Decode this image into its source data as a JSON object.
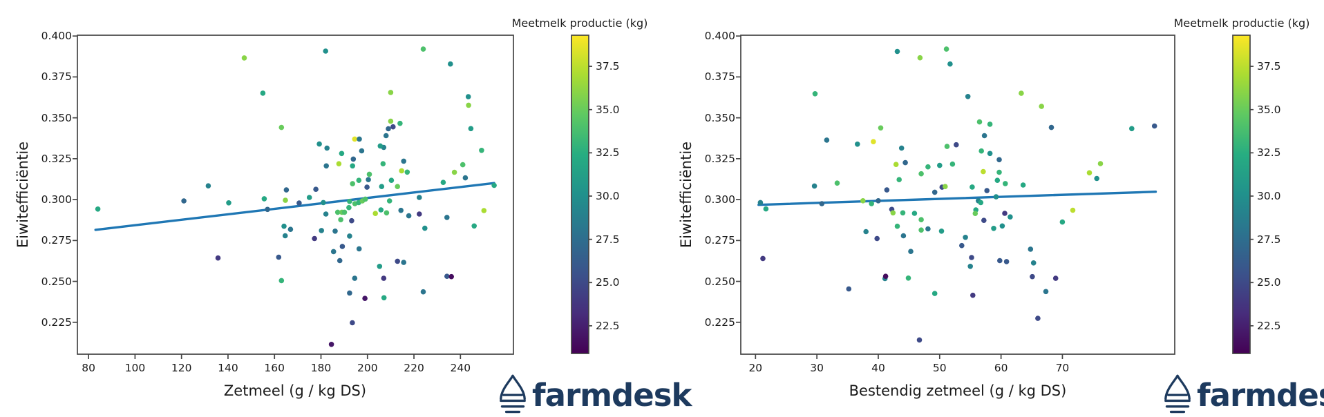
{
  "page": {
    "background": "#ffffff"
  },
  "branding": {
    "logo_text": "farmdesk",
    "logo_color": "#1d3a5e"
  },
  "colorbar": {
    "title": "Meetmelk productie (kg)",
    "tick_values": [
      37.5,
      35.0,
      32.5,
      30.0,
      27.5,
      25.0,
      22.5
    ],
    "vmin": 20.9,
    "vmax": 39.3,
    "colormap": "viridis"
  },
  "chart_data": [
    {
      "type": "scatter",
      "title": "",
      "xlabel": "Zetmeel (g / kg DS)",
      "ylabel": "Eiwitefficiëntie",
      "color_label": "Meetmelk productie (kg)",
      "xlim": [
        75.2,
        262.8
      ],
      "ylim": [
        0.2055,
        0.4005
      ],
      "xticks": [
        80,
        100,
        120,
        140,
        160,
        180,
        200,
        220,
        240
      ],
      "yticks": [
        0.4,
        0.375,
        0.35,
        0.325,
        0.3,
        0.275,
        0.25,
        0.225
      ],
      "grid": false,
      "legend": "none",
      "trendline": {
        "color": "#1f77b4",
        "x": [
          83,
          254.5
        ],
        "y": [
          0.2815,
          0.3101
        ]
      },
      "points": [
        [
          147,
          0.3866,
          36
        ],
        [
          131.5,
          0.3084,
          29
        ],
        [
          182,
          0.3908,
          30
        ],
        [
          224,
          0.392,
          34
        ],
        [
          155,
          0.3651,
          32
        ],
        [
          210,
          0.3655,
          36
        ],
        [
          163,
          0.3441,
          35
        ],
        [
          210,
          0.3479,
          36
        ],
        [
          214,
          0.3466,
          33
        ],
        [
          211,
          0.3445,
          25
        ],
        [
          209,
          0.3433,
          27
        ],
        [
          208,
          0.3391,
          28
        ],
        [
          207,
          0.3319,
          29
        ],
        [
          205.5,
          0.3328,
          31
        ],
        [
          194.5,
          0.337,
          38.5
        ],
        [
          196.5,
          0.337,
          28
        ],
        [
          179.3,
          0.334,
          30
        ],
        [
          182.6,
          0.3315,
          29
        ],
        [
          188.9,
          0.3282,
          32
        ],
        [
          197.5,
          0.3298,
          28
        ],
        [
          193.9,
          0.3248,
          27
        ],
        [
          182.3,
          0.3206,
          28
        ],
        [
          187.7,
          0.3219,
          37
        ],
        [
          193.6,
          0.3206,
          32
        ],
        [
          206.7,
          0.3219,
          33
        ],
        [
          215.6,
          0.3235,
          28
        ],
        [
          214.7,
          0.3176,
          37
        ],
        [
          217.1,
          0.3168,
          33
        ],
        [
          200.8,
          0.3155,
          34
        ],
        [
          200.4,
          0.3122,
          28
        ],
        [
          196.3,
          0.3118,
          33
        ],
        [
          193.6,
          0.3097,
          34
        ],
        [
          210.3,
          0.3118,
          32
        ],
        [
          206.1,
          0.308,
          31
        ],
        [
          212.9,
          0.308,
          35
        ],
        [
          199.8,
          0.3076,
          26
        ],
        [
          165.1,
          0.3059,
          27
        ],
        [
          177.8,
          0.3063,
          26
        ],
        [
          235.7,
          0.3829,
          30
        ],
        [
          243.4,
          0.3629,
          30
        ],
        [
          243.5,
          0.3577,
          36
        ],
        [
          244.5,
          0.3434,
          31
        ],
        [
          249.1,
          0.3301,
          33
        ],
        [
          241,
          0.3213,
          34
        ],
        [
          237.4,
          0.3167,
          36
        ],
        [
          242.1,
          0.3133,
          28
        ],
        [
          232.6,
          0.3105,
          32
        ],
        [
          254.5,
          0.3087,
          32
        ],
        [
          222.3,
          0.3013,
          29
        ],
        [
          222.3,
          0.2912,
          24
        ],
        [
          234.2,
          0.2891,
          28
        ],
        [
          250.1,
          0.2933,
          37
        ],
        [
          84,
          0.2942,
          32
        ],
        [
          121,
          0.2992,
          27
        ],
        [
          140.3,
          0.298,
          31
        ],
        [
          135.7,
          0.2643,
          24
        ],
        [
          155.6,
          0.3005,
          32
        ],
        [
          164.7,
          0.2996,
          36
        ],
        [
          175,
          0.3013,
          31
        ],
        [
          170.6,
          0.2979,
          26
        ],
        [
          157,
          0.294,
          27
        ],
        [
          181,
          0.2982,
          30
        ],
        [
          192.3,
          0.2989,
          33
        ],
        [
          194.6,
          0.2975,
          34
        ],
        [
          196.2,
          0.2982,
          33
        ],
        [
          197.8,
          0.2992,
          35
        ],
        [
          199.1,
          0.3003,
          34
        ],
        [
          182.1,
          0.2912,
          29
        ],
        [
          187.2,
          0.2923,
          34
        ],
        [
          189,
          0.2923,
          35
        ],
        [
          190.1,
          0.2923,
          34
        ],
        [
          192,
          0.2951,
          33
        ],
        [
          188.5,
          0.2877,
          34
        ],
        [
          193.2,
          0.2871,
          25
        ],
        [
          203.4,
          0.2915,
          37
        ],
        [
          205.8,
          0.2937,
          32
        ],
        [
          208.2,
          0.2919,
          34
        ],
        [
          209.5,
          0.2992,
          33
        ],
        [
          214.4,
          0.2934,
          28
        ],
        [
          217.8,
          0.2901,
          28
        ],
        [
          224.7,
          0.2825,
          30
        ],
        [
          164.1,
          0.2837,
          30
        ],
        [
          166.9,
          0.2818,
          28
        ],
        [
          164.6,
          0.2779,
          29
        ],
        [
          180.2,
          0.2811,
          29
        ],
        [
          186.1,
          0.2807,
          28
        ],
        [
          177.2,
          0.2762,
          24
        ],
        [
          192.3,
          0.2777,
          29
        ],
        [
          189.2,
          0.2714,
          26
        ],
        [
          185.4,
          0.2682,
          28
        ],
        [
          196.4,
          0.2699,
          28
        ],
        [
          161.8,
          0.2648,
          26
        ],
        [
          188.1,
          0.2627,
          27
        ],
        [
          212.9,
          0.2623,
          25
        ],
        [
          215.6,
          0.2616,
          28
        ],
        [
          205.2,
          0.2592,
          31
        ],
        [
          163,
          0.2505,
          33
        ],
        [
          194.5,
          0.2519,
          28
        ],
        [
          207,
          0.2519,
          24
        ],
        [
          192.3,
          0.2429,
          27
        ],
        [
          198.9,
          0.2396,
          22
        ],
        [
          207.1,
          0.24,
          32
        ],
        [
          224,
          0.2436,
          28
        ],
        [
          193.5,
          0.2247,
          25
        ],
        [
          184.5,
          0.2115,
          22
        ],
        [
          245.9,
          0.2839,
          32
        ],
        [
          234.2,
          0.2531,
          26
        ],
        [
          236.1,
          0.2529,
          21.5
        ]
      ]
    },
    {
      "type": "scatter",
      "title": "",
      "xlabel": "Bestendig zetmeel (g / kg DS)",
      "ylabel": "Eiwitefficiëntie",
      "color_label": "Meetmelk productie (kg)",
      "xlim": [
        17.6,
        88.3
      ],
      "ylim": [
        0.2055,
        0.4005
      ],
      "xticks": [
        20,
        30,
        40,
        50,
        60,
        70
      ],
      "yticks": [
        0.4,
        0.375,
        0.35,
        0.325,
        0.3,
        0.275,
        0.25,
        0.225
      ],
      "grid": false,
      "legend": "none",
      "trendline": {
        "color": "#1f77b4",
        "x": [
          20.5,
          85.2
        ],
        "y": [
          0.2968,
          0.3048
        ]
      },
      "points": [
        [
          43.1,
          0.3906,
          30
        ],
        [
          51.1,
          0.392,
          34
        ],
        [
          46.8,
          0.3867,
          36
        ],
        [
          51.7,
          0.3829,
          30
        ],
        [
          29.7,
          0.3647,
          33
        ],
        [
          40.4,
          0.3438,
          35
        ],
        [
          31.6,
          0.3364,
          28
        ],
        [
          39.2,
          0.3354,
          38.5
        ],
        [
          36.6,
          0.3339,
          30
        ],
        [
          43.8,
          0.3315,
          29
        ],
        [
          42.9,
          0.3215,
          37
        ],
        [
          44.4,
          0.3226,
          27
        ],
        [
          48.1,
          0.32,
          33
        ],
        [
          50,
          0.3209,
          31
        ],
        [
          52.1,
          0.3217,
          33
        ],
        [
          47,
          0.3158,
          34
        ],
        [
          43.4,
          0.3122,
          33
        ],
        [
          29.6,
          0.3083,
          29
        ],
        [
          33.3,
          0.3101,
          34
        ],
        [
          41.4,
          0.3059,
          26
        ],
        [
          49.2,
          0.3045,
          27
        ],
        [
          50.4,
          0.3076,
          25
        ],
        [
          50.9,
          0.308,
          36
        ],
        [
          52.7,
          0.3335,
          25
        ],
        [
          51.2,
          0.3325,
          34
        ],
        [
          54.6,
          0.363,
          29
        ],
        [
          63.3,
          0.365,
          36
        ],
        [
          66.6,
          0.357,
          36
        ],
        [
          68.2,
          0.3441,
          27
        ],
        [
          56.5,
          0.3475,
          34
        ],
        [
          58.2,
          0.3461,
          33
        ],
        [
          57.3,
          0.3391,
          28
        ],
        [
          56.8,
          0.3297,
          33
        ],
        [
          58.2,
          0.3282,
          30
        ],
        [
          59.7,
          0.3244,
          27
        ],
        [
          57.1,
          0.3171,
          37.5
        ],
        [
          59.7,
          0.3167,
          33
        ],
        [
          59.4,
          0.3118,
          32
        ],
        [
          60.7,
          0.3098,
          33
        ],
        [
          63.6,
          0.3089,
          32
        ],
        [
          55.3,
          0.3077,
          32
        ],
        [
          57.7,
          0.3055,
          26
        ],
        [
          81.3,
          0.3434,
          31
        ],
        [
          85,
          0.345,
          26
        ],
        [
          76.2,
          0.322,
          36
        ],
        [
          74.4,
          0.3164,
          37
        ],
        [
          75.6,
          0.3129,
          30
        ],
        [
          20.8,
          0.2982,
          29
        ],
        [
          21.7,
          0.2943,
          32
        ],
        [
          30.8,
          0.2975,
          27
        ],
        [
          37.5,
          0.2993,
          36
        ],
        [
          38.9,
          0.2975,
          33
        ],
        [
          40,
          0.2993,
          27
        ],
        [
          42.2,
          0.294,
          25
        ],
        [
          42.4,
          0.2919,
          36
        ],
        [
          44,
          0.2919,
          33
        ],
        [
          45.9,
          0.2916,
          32
        ],
        [
          47,
          0.2877,
          34
        ],
        [
          43.1,
          0.2837,
          33
        ],
        [
          38,
          0.2804,
          29
        ],
        [
          39.8,
          0.2762,
          25
        ],
        [
          44.1,
          0.2779,
          28
        ],
        [
          47,
          0.2814,
          34
        ],
        [
          48.1,
          0.2821,
          28
        ],
        [
          50.3,
          0.2807,
          31
        ],
        [
          45.3,
          0.2683,
          28
        ],
        [
          21.2,
          0.264,
          24
        ],
        [
          41.1,
          0.2517,
          29
        ],
        [
          41.2,
          0.2531,
          21.5
        ],
        [
          44.9,
          0.252,
          33
        ],
        [
          35.2,
          0.2454,
          26
        ],
        [
          49.2,
          0.2426,
          32
        ],
        [
          46.7,
          0.2142,
          25
        ],
        [
          59.2,
          0.3017,
          30
        ],
        [
          56.3,
          0.2993,
          29
        ],
        [
          56.7,
          0.2982,
          32
        ],
        [
          55.9,
          0.2937,
          32
        ],
        [
          55.8,
          0.2915,
          35
        ],
        [
          57.2,
          0.2873,
          25
        ],
        [
          60.6,
          0.2916,
          24
        ],
        [
          61.5,
          0.2894,
          30
        ],
        [
          58.8,
          0.2824,
          31
        ],
        [
          60.2,
          0.2839,
          30
        ],
        [
          54.2,
          0.2769,
          29
        ],
        [
          53.6,
          0.2719,
          26
        ],
        [
          55.2,
          0.2646,
          25
        ],
        [
          55,
          0.2592,
          29
        ],
        [
          59.8,
          0.2627,
          26
        ],
        [
          60.9,
          0.2621,
          26
        ],
        [
          64.8,
          0.2697,
          28
        ],
        [
          65.3,
          0.2613,
          29
        ],
        [
          65.1,
          0.2529,
          25
        ],
        [
          68.9,
          0.2519,
          24
        ],
        [
          67.3,
          0.2438,
          28
        ],
        [
          55.4,
          0.2415,
          24
        ],
        [
          71.7,
          0.2935,
          37.5
        ],
        [
          70,
          0.2863,
          32
        ],
        [
          66,
          0.2274,
          25
        ]
      ]
    }
  ]
}
